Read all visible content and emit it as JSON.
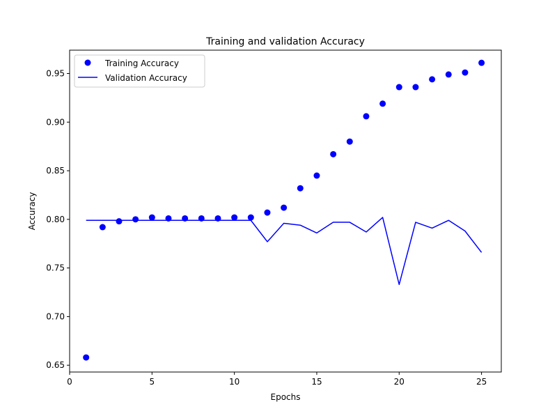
{
  "chart_data": {
    "type": "scatter",
    "title": "Training and validation Accuracy",
    "xlabel": "Epochs",
    "ylabel": "Accuracy",
    "xlim": [
      0,
      26.2
    ],
    "ylim": [
      0.643,
      0.974
    ],
    "xticks": [
      0,
      5,
      10,
      15,
      20,
      25
    ],
    "yticks": [
      0.65,
      0.7,
      0.75,
      0.8,
      0.85,
      0.9,
      0.95
    ],
    "ytick_labels": [
      "0.65",
      "0.70",
      "0.75",
      "0.80",
      "0.85",
      "0.90",
      "0.95"
    ],
    "grid": false,
    "legend_position": "top-left",
    "series": [
      {
        "name": "Training Accuracy",
        "style": "markers",
        "color": "#0000ff",
        "x": [
          1,
          2,
          3,
          4,
          5,
          6,
          7,
          8,
          9,
          10,
          11,
          12,
          13,
          14,
          15,
          16,
          17,
          18,
          19,
          20,
          21,
          22,
          23,
          24,
          25
        ],
        "y": [
          0.658,
          0.792,
          0.798,
          0.8,
          0.802,
          0.801,
          0.801,
          0.801,
          0.801,
          0.802,
          0.802,
          0.807,
          0.812,
          0.832,
          0.845,
          0.867,
          0.88,
          0.906,
          0.919,
          0.936,
          0.936,
          0.944,
          0.949,
          0.951,
          0.961
        ]
      },
      {
        "name": "Validation Accuracy",
        "style": "line",
        "color": "#0000ff",
        "x": [
          1,
          2,
          3,
          4,
          5,
          6,
          7,
          8,
          9,
          10,
          11,
          12,
          13,
          14,
          15,
          16,
          17,
          18,
          19,
          20,
          21,
          22,
          23,
          24,
          25
        ],
        "y": [
          0.799,
          0.799,
          0.799,
          0.799,
          0.799,
          0.799,
          0.799,
          0.799,
          0.799,
          0.799,
          0.799,
          0.777,
          0.796,
          0.794,
          0.786,
          0.797,
          0.797,
          0.787,
          0.802,
          0.733,
          0.797,
          0.791,
          0.799,
          0.788,
          0.766
        ]
      }
    ]
  }
}
